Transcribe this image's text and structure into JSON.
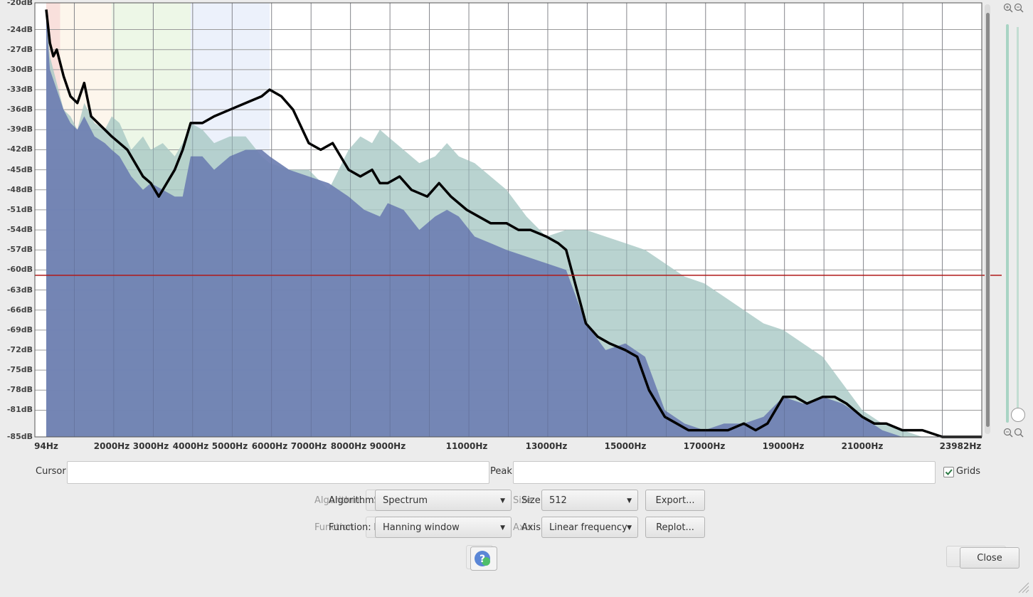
{
  "chart_data": {
    "type": "area",
    "title": "",
    "xlabel": "",
    "ylabel": "",
    "xlim": [
      94,
      23982
    ],
    "ylim": [
      -85,
      -20
    ],
    "y_tick_labels": [
      "-20dB",
      "-24dB",
      "-27dB",
      "-30dB",
      "-33dB",
      "-36dB",
      "-39dB",
      "-42dB",
      "-45dB",
      "-48dB",
      "-51dB",
      "-54dB",
      "-57dB",
      "-60dB",
      "-63dB",
      "-66dB",
      "-69dB",
      "-72dB",
      "-75dB",
      "-78dB",
      "-81dB",
      "-85dB"
    ],
    "y_tick_values": [
      -20,
      -24,
      -27,
      -30,
      -33,
      -36,
      -39,
      -42,
      -45,
      -48,
      -51,
      -54,
      -57,
      -60,
      -63,
      -66,
      -69,
      -72,
      -75,
      -78,
      -81,
      -85
    ],
    "x_tick_labels": [
      "94Hz",
      "2000Hz",
      "3000Hz",
      "4000Hz",
      "5000Hz",
      "6000Hz",
      "7000Hz",
      "8000Hz",
      "9000Hz",
      "11000Hz",
      "13000Hz",
      "15000Hz",
      "17000Hz",
      "19000Hz",
      "21000Hz",
      "23982Hz"
    ],
    "x_tick_values": [
      94,
      2000,
      3000,
      4000,
      5000,
      6000,
      7000,
      8000,
      9000,
      11000,
      13000,
      15000,
      17000,
      19000,
      21000,
      23982
    ],
    "grid": true,
    "reference_line_db": -60.8,
    "bands": [
      {
        "from": 94,
        "to": 500,
        "color": "#f4c7c0"
      },
      {
        "from": 500,
        "to": 2000,
        "color": "#fbeedd"
      },
      {
        "from": 2000,
        "to": 4000,
        "color": "#dff0d4"
      },
      {
        "from": 4000,
        "to": 6000,
        "color": "#dde6f8"
      }
    ],
    "series": [
      {
        "color": "#a8c8c4",
        "x": [
          94,
          200,
          400,
          600,
          800,
          1000,
          1200,
          1500,
          1800,
          2000,
          2200,
          2500,
          2800,
          3000,
          3300,
          3600,
          3800,
          4000,
          4300,
          4600,
          5000,
          5400,
          5800,
          6000,
          6500,
          7000,
          7500,
          8000,
          8300,
          8600,
          8800,
          9000,
          9400,
          9800,
          10200,
          10500,
          10800,
          11200,
          11600,
          12000,
          12500,
          13000,
          13500,
          14000,
          14500,
          15000,
          15500,
          16000,
          16500,
          17000,
          17500,
          18000,
          18500,
          19000,
          19500,
          20000,
          20500,
          21000,
          21500,
          22000,
          22500,
          23000,
          23500,
          23982
        ],
        "values": [
          -21,
          -28,
          -32,
          -36,
          -37,
          -39,
          -35,
          -38,
          -39,
          -37,
          -38,
          -42,
          -40,
          -42,
          -41,
          -43,
          -41,
          -38,
          -39,
          -41,
          -40,
          -40,
          -43,
          -44,
          -45,
          -45,
          -48,
          -42,
          -40,
          -41,
          -39,
          -40,
          -42,
          -44,
          -43,
          -41,
          -43,
          -44,
          -46,
          -48,
          -52,
          -55,
          -54,
          -54,
          -55,
          -56,
          -57,
          -59,
          -61,
          -62,
          -64,
          -66,
          -68,
          -69,
          -71,
          -73,
          -77,
          -81,
          -83,
          -84,
          -85,
          -85,
          -85,
          -85
        ]
      },
      {
        "color": "#6e7fb2",
        "x": [
          94,
          200,
          400,
          600,
          800,
          1000,
          1200,
          1500,
          1800,
          2000,
          2200,
          2500,
          2800,
          3000,
          3300,
          3600,
          3800,
          4000,
          4300,
          4600,
          5000,
          5400,
          5800,
          6000,
          6500,
          7000,
          7500,
          8000,
          8400,
          8800,
          9000,
          9400,
          9800,
          10200,
          10500,
          10800,
          11200,
          11600,
          12000,
          12500,
          13000,
          13500,
          14000,
          14500,
          15000,
          15500,
          16000,
          16500,
          17000,
          17500,
          18000,
          18500,
          19000,
          19500,
          20000,
          20500,
          21000,
          21500,
          22000,
          22500,
          23000,
          23500,
          23982
        ],
        "values": [
          -22,
          -30,
          -33,
          -36,
          -38,
          -39,
          -37,
          -40,
          -41,
          -42,
          -43,
          -46,
          -48,
          -47,
          -48,
          -49,
          -49,
          -43,
          -43,
          -45,
          -43,
          -42,
          -42,
          -43,
          -45,
          -46,
          -47,
          -49,
          -51,
          -52,
          -50,
          -51,
          -54,
          -52,
          -51,
          -52,
          -55,
          -56,
          -57,
          -58,
          -59,
          -60,
          -68,
          -72,
          -71,
          -73,
          -81,
          -83,
          -84,
          -83,
          -83,
          -82,
          -79,
          -80,
          -79,
          -80,
          -82,
          -84,
          -85,
          -85,
          -85,
          -85,
          -85
        ]
      },
      {
        "color": "#000000",
        "x": [
          94,
          200,
          300,
          400,
          600,
          800,
          1000,
          1200,
          1400,
          1600,
          1800,
          2000,
          2200,
          2400,
          2600,
          2800,
          3000,
          3200,
          3400,
          3600,
          3800,
          4000,
          4300,
          4600,
          5000,
          5400,
          5800,
          6000,
          6300,
          6600,
          7000,
          7300,
          7600,
          8000,
          8300,
          8600,
          8800,
          9000,
          9300,
          9600,
          10000,
          10300,
          10600,
          11000,
          11300,
          11600,
          12000,
          12300,
          12600,
          13000,
          13300,
          13500,
          14000,
          14300,
          14600,
          15000,
          15300,
          15600,
          16000,
          16300,
          16600,
          17000,
          17300,
          17600,
          18000,
          18300,
          18600,
          19000,
          19300,
          19600,
          20000,
          20300,
          20600,
          21000,
          21300,
          21600,
          22000,
          22500,
          23000,
          23500,
          23982
        ],
        "values": [
          -21,
          -26,
          -28,
          -27,
          -31,
          -34,
          -35,
          -32,
          -37,
          -38,
          -39,
          -40,
          -41,
          -42,
          -44,
          -46,
          -47,
          -49,
          -47,
          -45,
          -42,
          -38,
          -38,
          -37,
          -36,
          -35,
          -34,
          -33,
          -34,
          -36,
          -41,
          -42,
          -41,
          -45,
          -46,
          -45,
          -47,
          -47,
          -46,
          -48,
          -49,
          -47,
          -49,
          -51,
          -52,
          -53,
          -53,
          -54,
          -54,
          -55,
          -56,
          -57,
          -68,
          -70,
          -71,
          -72,
          -73,
          -78,
          -82,
          -83,
          -84,
          -84,
          -84,
          -84,
          -83,
          -84,
          -83,
          -79,
          -79,
          -80,
          -79,
          -79,
          -80,
          -82,
          -83,
          -83,
          -84,
          -84,
          -85,
          -85,
          -85
        ]
      }
    ]
  },
  "controls": {
    "cursor_label": "Cursor:",
    "cursor_value": "",
    "peak_label": "Peak:",
    "peak_value": "",
    "grids_label": "Grids",
    "grids_checked": true,
    "algorithm_label": "Algorithm:",
    "algorithm_value": "Spectrum",
    "size_label": "Size:",
    "size_value": "512",
    "export_label": "Export...",
    "function_label": "Function:",
    "function_value": "Hanning window",
    "axis_label": "Axis:",
    "axis_value": "Linear frequency",
    "replot_label": "Replot...",
    "close_label": "Close",
    "help_icon": "help-icon",
    "zoom_in_icon": "zoom-in-icon",
    "zoom_out_icon": "zoom-out-icon"
  }
}
